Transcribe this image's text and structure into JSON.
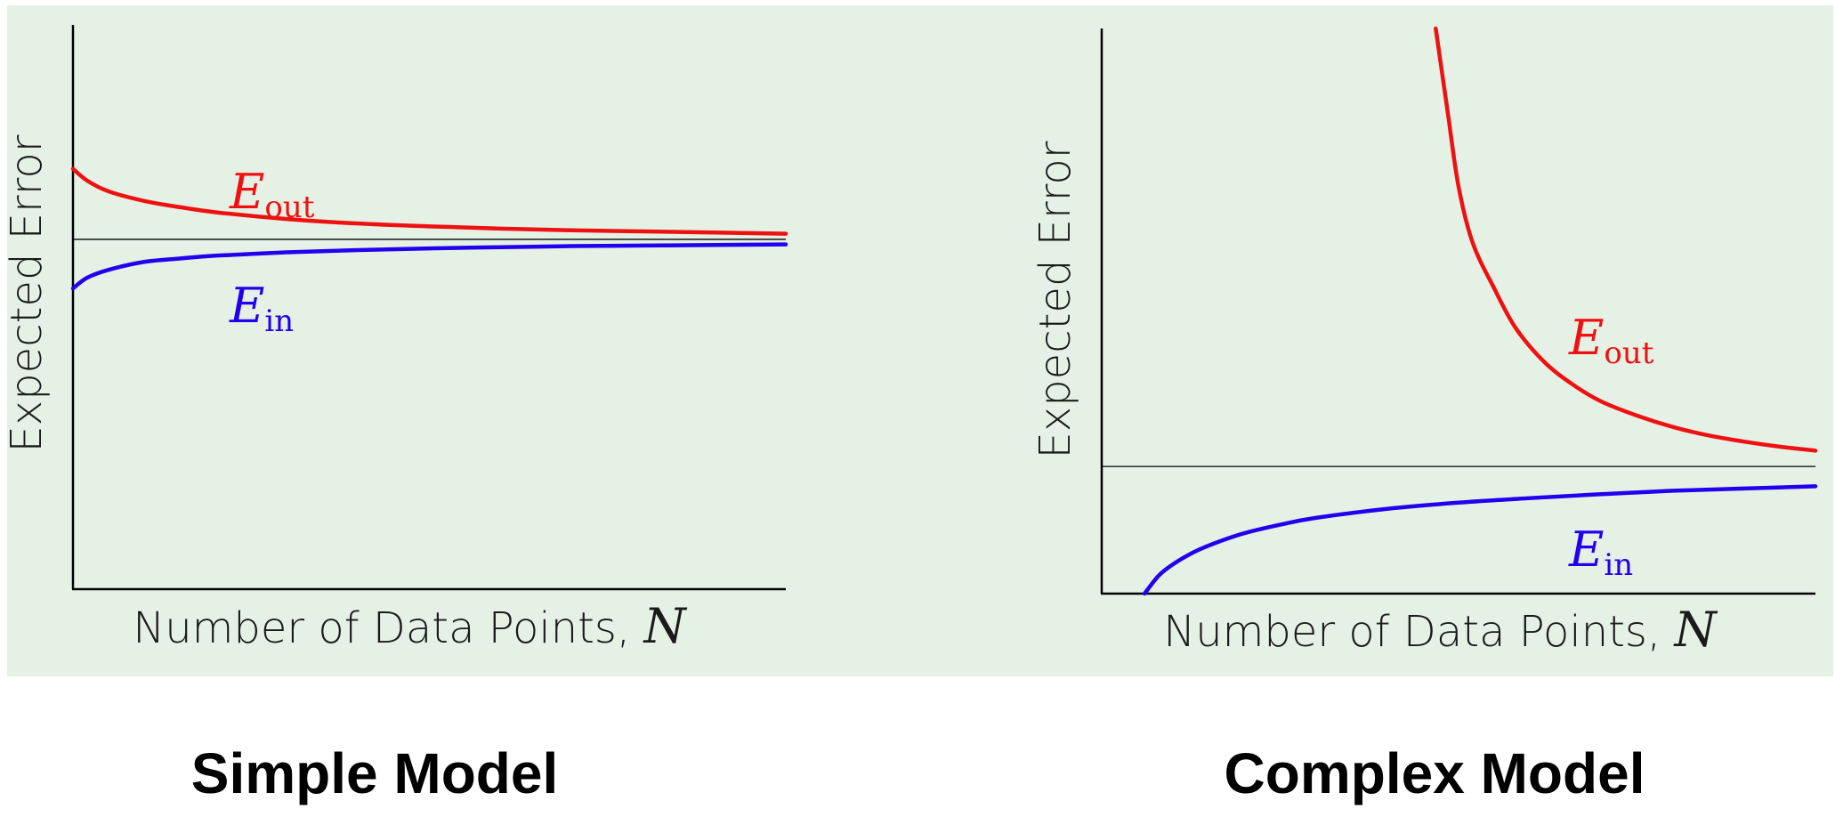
{
  "colors": {
    "panel_bg": "#e6f1e6",
    "e_out": "#ee1111",
    "e_in": "#2200ee",
    "axis": "#000000"
  },
  "captions": {
    "left": "Simple Model",
    "right": "Complex Model"
  },
  "chart_data": [
    {
      "type": "line",
      "title": "Simple Model",
      "xlabel": "Number of Data Points, N",
      "ylabel": "Expected Error",
      "xlim": [
        0,
        100
      ],
      "ylim": [
        0,
        100
      ],
      "axis_ticks": false,
      "grid": false,
      "reference_line": 62,
      "series": [
        {
          "name": "E_out",
          "label_main": "E",
          "label_sub": "out",
          "color": "#ee1111",
          "x": [
            0,
            2,
            5,
            10,
            15,
            20,
            30,
            40,
            50,
            60,
            70,
            80,
            90,
            100
          ],
          "y": [
            74.5,
            72.4,
            70.5,
            68.8,
            67.7,
            66.8,
            65.6,
            64.8,
            64.3,
            63.9,
            63.6,
            63.4,
            63.2,
            63.0
          ]
        },
        {
          "name": "E_in",
          "label_main": "E",
          "label_sub": "in",
          "color": "#2200ee",
          "x": [
            0,
            2,
            5,
            10,
            15,
            20,
            30,
            40,
            50,
            60,
            70,
            80,
            90,
            100
          ],
          "y": [
            53.3,
            55.2,
            56.6,
            58.0,
            58.6,
            59.1,
            59.7,
            60.1,
            60.4,
            60.6,
            60.8,
            60.9,
            61.0,
            61.1
          ]
        }
      ]
    },
    {
      "type": "line",
      "title": "Complex Model",
      "xlabel": "Number of Data Points, N",
      "ylabel": "Expected Error",
      "xlim": [
        0,
        100
      ],
      "ylim": [
        0,
        100
      ],
      "axis_ticks": false,
      "grid": false,
      "reference_line": 22.5,
      "series": [
        {
          "name": "E_out",
          "label_main": "E",
          "label_sub": "out",
          "color": "#ee1111",
          "x": [
            46.8,
            48.5,
            50,
            52,
            55,
            58,
            62,
            66,
            70,
            75,
            80,
            85,
            90,
            95,
            100
          ],
          "y": [
            100,
            85,
            72,
            62,
            54,
            47,
            41,
            37,
            34,
            31.5,
            29.5,
            28,
            26.9,
            26.0,
            25.3
          ]
        },
        {
          "name": "E_in",
          "label_main": "E",
          "label_sub": "in",
          "color": "#2200ee",
          "x": [
            6,
            8,
            10,
            13,
            16,
            20,
            25,
            30,
            40,
            50,
            60,
            70,
            80,
            90,
            100
          ],
          "y": [
            0,
            3.2,
            5.2,
            7.4,
            9.0,
            10.7,
            12.2,
            13.4,
            15.0,
            16.1,
            16.9,
            17.6,
            18.2,
            18.6,
            19.0
          ]
        }
      ]
    }
  ]
}
